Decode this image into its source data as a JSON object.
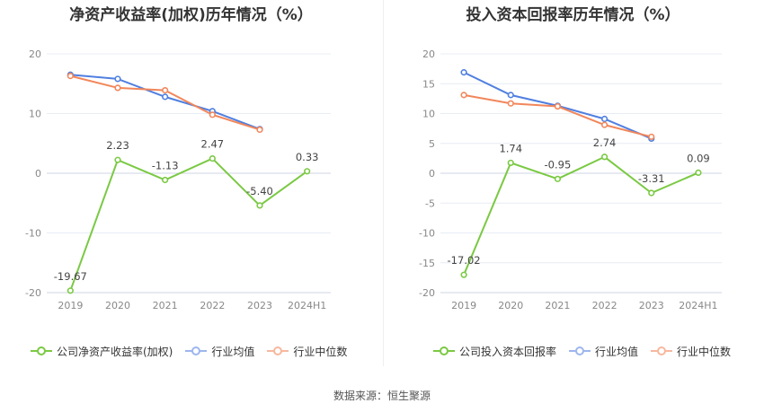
{
  "colors": {
    "company": "#7ac943",
    "industry_avg": "#4f7fe0",
    "industry_median": "#f2865a",
    "grid": "#e8ecf4",
    "axis_label": "#888888",
    "data_label": "#444444"
  },
  "left": {
    "title": "净资产收益率(加权)历年情况（%）",
    "legend": {
      "company": "公司净资产收益率(加权)",
      "avg": "行业均值",
      "median": "行业中位数"
    }
  },
  "right": {
    "title": "投入资本回报率历年情况（%）",
    "legend": {
      "company": "公司投入资本回报率",
      "avg": "行业均值",
      "median": "行业中位数"
    }
  },
  "source": "数据来源：恒生聚源",
  "chart_data": [
    {
      "type": "line",
      "title": "净资产收益率(加权)历年情况（%）",
      "categories": [
        "2019",
        "2020",
        "2021",
        "2022",
        "2023",
        "2024H1"
      ],
      "ylim": [
        -20,
        20
      ],
      "yticks": [
        20,
        10,
        0,
        -10,
        -20
      ],
      "grid": true,
      "legend_position": "bottom",
      "series": [
        {
          "name": "公司净资产收益率(加权)",
          "values": [
            -19.67,
            2.23,
            -1.13,
            2.47,
            -5.4,
            0.33
          ],
          "labels": [
            "-19.67",
            "2.23",
            "-1.13",
            "2.47",
            "-5.40",
            "0.33"
          ]
        },
        {
          "name": "行业均值",
          "values": [
            16.5,
            15.8,
            12.8,
            10.4,
            7.4,
            null
          ]
        },
        {
          "name": "行业中位数",
          "values": [
            16.3,
            14.3,
            13.9,
            9.8,
            7.3,
            null
          ]
        }
      ]
    },
    {
      "type": "line",
      "title": "投入资本回报率历年情况（%）",
      "categories": [
        "2019",
        "2020",
        "2021",
        "2022",
        "2023",
        "2024H1"
      ],
      "ylim": [
        -20,
        20
      ],
      "yticks": [
        20,
        15,
        10,
        5,
        0,
        -5,
        -10,
        -15,
        -20
      ],
      "grid": true,
      "legend_position": "bottom",
      "series": [
        {
          "name": "公司投入资本回报率",
          "values": [
            -17.02,
            1.74,
            -0.95,
            2.74,
            -3.31,
            0.09
          ],
          "labels": [
            "-17.02",
            "1.74",
            "-0.95",
            "2.74",
            "-3.31",
            "0.09"
          ]
        },
        {
          "name": "行业均值",
          "values": [
            16.9,
            13.1,
            11.3,
            9.1,
            5.8,
            null
          ]
        },
        {
          "name": "行业中位数",
          "values": [
            13.1,
            11.7,
            11.2,
            8.1,
            6.1,
            null
          ]
        }
      ]
    }
  ]
}
